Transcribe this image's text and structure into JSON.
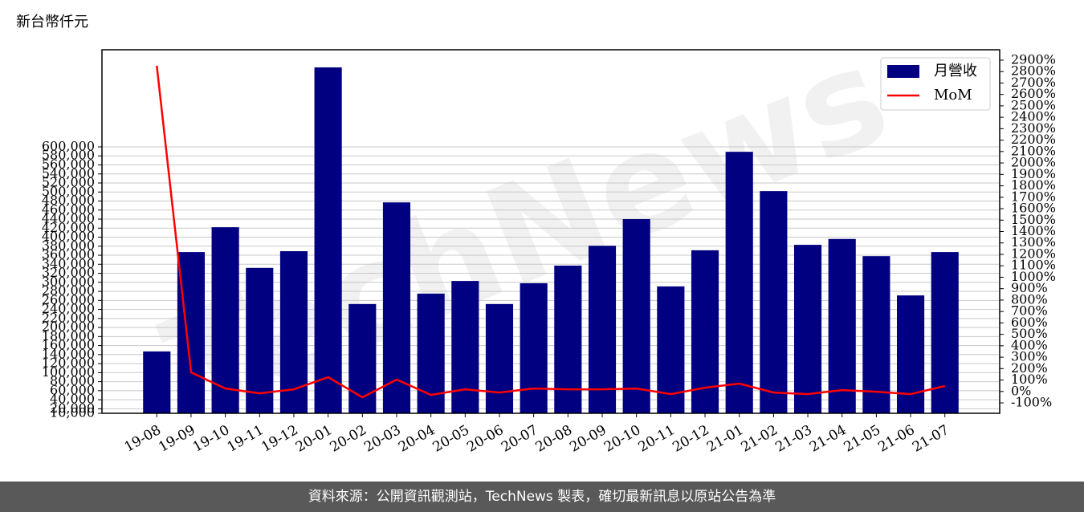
{
  "chart_data": {
    "type": "bar_line",
    "unit_label": "新台幣仟元",
    "watermark": "TechNews",
    "footer": "資料來源：公開資訊觀測站，TechNews 製表，確切最新訊息以原站公告為準",
    "categories": [
      "19-08",
      "19-09",
      "19-10",
      "19-11",
      "19-12",
      "20-01",
      "20-02",
      "20-03",
      "20-04",
      "20-05",
      "20-06",
      "20-07",
      "20-08",
      "20-09",
      "20-10",
      "20-11",
      "20-12",
      "21-01",
      "21-02",
      "21-03",
      "21-04",
      "21-05",
      "21-06",
      "21-07"
    ],
    "series": [
      {
        "name": "月營收",
        "type": "bar",
        "color": "#000080",
        "values": [
          147000,
          367000,
          422000,
          332000,
          369000,
          776000,
          252000,
          477000,
          275000,
          303000,
          252000,
          298000,
          337000,
          381000,
          440000,
          291000,
          371000,
          589000,
          502000,
          383000,
          396000,
          358000,
          271000,
          367000
        ]
      },
      {
        "name": "MoM",
        "type": "line",
        "axis": "y2",
        "color": "#ff0000",
        "values": [
          2851,
          167,
          26,
          -16,
          19,
          125,
          -51,
          104,
          -30,
          19,
          -9,
          26,
          19,
          19,
          26,
          -23,
          33,
          69,
          -9,
          -23,
          12,
          -2,
          -23,
          48
        ]
      }
    ],
    "ylim": [
      10000,
      815000
    ],
    "yticks": [
      {
        "value": 10000,
        "label": "10,000"
      },
      {
        "value": 20000,
        "label": "20,000"
      },
      {
        "value": 40000,
        "label": "40,000"
      },
      {
        "value": 60000,
        "label": "60,000"
      },
      {
        "value": 80000,
        "label": "80,000"
      },
      {
        "value": 100000,
        "label": "100,000"
      },
      {
        "value": 120000,
        "label": "120,000"
      },
      {
        "value": 140000,
        "label": "140,000"
      },
      {
        "value": 160000,
        "label": "160,000"
      },
      {
        "value": 180000,
        "label": "180,000"
      },
      {
        "value": 200000,
        "label": "200,000"
      },
      {
        "value": 220000,
        "label": "220,000"
      },
      {
        "value": 240000,
        "label": "240,000"
      },
      {
        "value": 260000,
        "label": "260,000"
      },
      {
        "value": 280000,
        "label": "280,000"
      },
      {
        "value": 300000,
        "label": "300,000"
      },
      {
        "value": 320000,
        "label": "320,000"
      },
      {
        "value": 340000,
        "label": "340,000"
      },
      {
        "value": 360000,
        "label": "360,000"
      },
      {
        "value": 380000,
        "label": "380,000"
      },
      {
        "value": 400000,
        "label": "400,000"
      },
      {
        "value": 420000,
        "label": "420,000"
      },
      {
        "value": 440000,
        "label": "440,000"
      },
      {
        "value": 460000,
        "label": "460,000"
      },
      {
        "value": 480000,
        "label": "480,000"
      },
      {
        "value": 500000,
        "label": "500,000"
      },
      {
        "value": 520000,
        "label": "520,000"
      },
      {
        "value": 540000,
        "label": "540,000"
      },
      {
        "value": 560000,
        "label": "560,000"
      },
      {
        "value": 580000,
        "label": "580,000"
      },
      {
        "value": 600000,
        "label": "600,000"
      }
    ],
    "y2lim": [
      -191,
      2991
    ],
    "y2ticks": [
      {
        "value": -100,
        "label": "-100%"
      },
      {
        "value": 0,
        "label": "0%"
      },
      {
        "value": 100,
        "label": "100%"
      },
      {
        "value": 200,
        "label": "200%"
      },
      {
        "value": 300,
        "label": "300%"
      },
      {
        "value": 400,
        "label": "400%"
      },
      {
        "value": 500,
        "label": "500%"
      },
      {
        "value": 600,
        "label": "600%"
      },
      {
        "value": 700,
        "label": "700%"
      },
      {
        "value": 800,
        "label": "800%"
      },
      {
        "value": 900,
        "label": "900%"
      },
      {
        "value": 1000,
        "label": "1000%"
      },
      {
        "value": 1100,
        "label": "1100%"
      },
      {
        "value": 1200,
        "label": "1200%"
      },
      {
        "value": 1300,
        "label": "1300%"
      },
      {
        "value": 1400,
        "label": "1400%"
      },
      {
        "value": 1500,
        "label": "1500%"
      },
      {
        "value": 1600,
        "label": "1600%"
      },
      {
        "value": 1700,
        "label": "1700%"
      },
      {
        "value": 1800,
        "label": "1800%"
      },
      {
        "value": 1900,
        "label": "1900%"
      },
      {
        "value": 2000,
        "label": "2000%"
      },
      {
        "value": 2100,
        "label": "2100%"
      },
      {
        "value": 2200,
        "label": "2200%"
      },
      {
        "value": 2300,
        "label": "2300%"
      },
      {
        "value": 2400,
        "label": "2400%"
      },
      {
        "value": 2500,
        "label": "2500%"
      },
      {
        "value": 2600,
        "label": "2600%"
      },
      {
        "value": 2700,
        "label": "2700%"
      },
      {
        "value": 2800,
        "label": "2800%"
      },
      {
        "value": 2900,
        "label": "2900%"
      }
    ],
    "grid": true,
    "legend": "upper right"
  }
}
